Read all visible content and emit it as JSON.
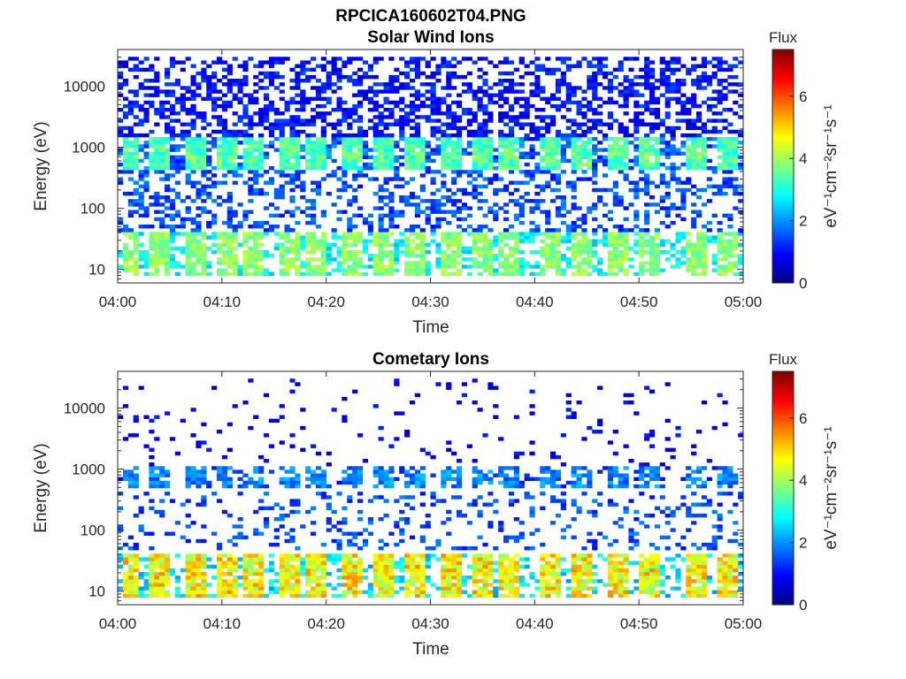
{
  "figure": {
    "title": "RPCICA160602T04.PNG"
  },
  "panels": [
    {
      "id": "solar",
      "title": "Solar Wind Ions",
      "xlabel": "Time",
      "ylabel": "Energy (eV)",
      "colorbar_title": "Flux",
      "colorbar_label": "eV⁻¹cm⁻²sr⁻¹s⁻¹"
    },
    {
      "id": "cometary",
      "title": "Cometary Ions",
      "xlabel": "Time",
      "ylabel": "Energy (eV)",
      "colorbar_title": "Flux",
      "colorbar_label": "eV⁻¹cm⁻²sr⁻¹s⁻¹"
    }
  ],
  "chart_data": [
    {
      "type": "heatmap",
      "title": "Solar Wind Ions",
      "xlabel": "Time",
      "ylabel": "Energy (eV)",
      "x_ticks": [
        "04:00",
        "04:10",
        "04:20",
        "04:30",
        "04:40",
        "04:50",
        "05:00"
      ],
      "x_range_minutes": [
        0,
        60
      ],
      "y_scale": "log",
      "y_ticks": [
        "10",
        "100",
        "1000",
        "10000"
      ],
      "y_range": [
        6,
        40000
      ],
      "colorbar": {
        "title": "Flux",
        "label": "eV⁻¹cm⁻²sr⁻¹s⁻¹",
        "ticks": [
          "0",
          "2",
          "4",
          "6"
        ],
        "range": [
          0,
          7.5
        ],
        "colormap": "jet"
      },
      "bands": [
        {
          "energy_range": [
            8,
            40
          ],
          "flux": 3.0,
          "note": "intermittent cyan/green low-energy band"
        },
        {
          "energy_range": [
            400,
            1500
          ],
          "flux": 4.0,
          "note": "periodic solar wind bursts, peak ~4"
        },
        {
          "energy_range": [
            40,
            40000
          ],
          "flux": 1.2,
          "note": "sparse dark-blue background"
        }
      ],
      "burst_centers_minutes": [
        1.2,
        4,
        7.5,
        10.5,
        13,
        16.5,
        19,
        22.5,
        25.5,
        28.5,
        32,
        35,
        37.5,
        41.5,
        44.5,
        48,
        51,
        55.5,
        58.5
      ],
      "grid": false,
      "legend": "none"
    },
    {
      "type": "heatmap",
      "title": "Cometary Ions",
      "xlabel": "Time",
      "ylabel": "Energy (eV)",
      "x_ticks": [
        "04:00",
        "04:10",
        "04:20",
        "04:30",
        "04:40",
        "04:50",
        "05:00"
      ],
      "x_range_minutes": [
        0,
        60
      ],
      "y_scale": "log",
      "y_ticks": [
        "10",
        "100",
        "1000",
        "10000"
      ],
      "y_range": [
        6,
        40000
      ],
      "colorbar": {
        "title": "Flux",
        "label": "eV⁻¹cm⁻²sr⁻¹s⁻¹",
        "ticks": [
          "0",
          "2",
          "4",
          "6"
        ],
        "range": [
          0,
          7.5
        ],
        "colormap": "jet"
      },
      "bands": [
        {
          "energy_range": [
            8,
            40
          ],
          "flux": 5.0,
          "note": "strong yellow/orange cometary band, peak ~5.5"
        },
        {
          "energy_range": [
            400,
            1200
          ],
          "flux": 2.0,
          "note": "blue patches at ~700 eV"
        },
        {
          "energy_range": [
            50,
            400
          ],
          "flux": 1.3,
          "note": "sparse blue scatter"
        }
      ],
      "burst_centers_minutes": [
        1.2,
        4,
        7.5,
        10.5,
        13,
        16.5,
        19,
        22.5,
        25.5,
        28.5,
        32,
        35,
        37.5,
        41.5,
        44.5,
        48,
        51,
        55.5,
        58.5
      ],
      "grid": false,
      "legend": "none"
    }
  ]
}
